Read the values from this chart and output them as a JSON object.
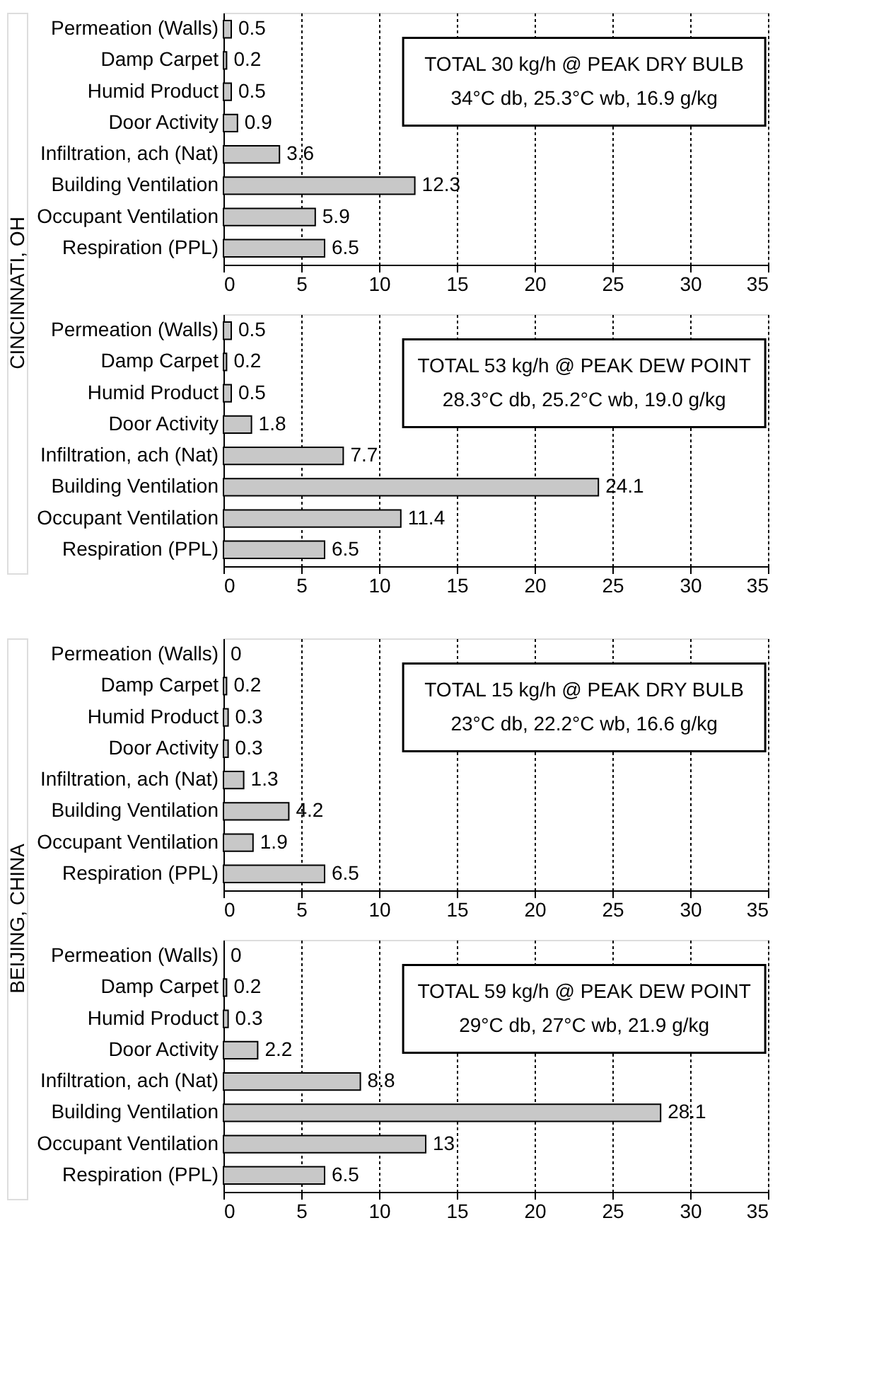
{
  "chart_data": [
    {
      "type": "bar",
      "orientation": "horizontal",
      "ylabel": "CINCINNATI, OH",
      "categories": [
        "Permeation (Walls)",
        "Damp Carpet",
        "Humid Product",
        "Door Activity",
        "Infiltration, ach (Nat)",
        "Building Ventilation",
        "Occupant Ventilation",
        "Respiration (PPL)"
      ],
      "values": [
        0.5,
        0.2,
        0.5,
        0.9,
        3.6,
        12.3,
        5.9,
        6.5
      ],
      "color": "#c8c8c8",
      "xlim": [
        0,
        35
      ],
      "xticks": [
        0,
        5,
        10,
        15,
        20,
        25,
        30,
        35
      ],
      "grid": "x",
      "data_labels": true,
      "annotations": [
        "TOTAL 30 kg/h @ PEAK DRY BULB",
        "34°C db,  25.3°C wb,  16.9 g/kg"
      ]
    },
    {
      "type": "bar",
      "orientation": "horizontal",
      "categories": [
        "Permeation (Walls)",
        "Damp Carpet",
        "Humid Product",
        "Door Activity",
        "Infiltration, ach (Nat)",
        "Building Ventilation",
        "Occupant Ventilation",
        "Respiration (PPL)"
      ],
      "values": [
        0.5,
        0.2,
        0.5,
        1.8,
        7.7,
        24.1,
        11.4,
        6.5
      ],
      "color": "#c8c8c8",
      "xlim": [
        0,
        35
      ],
      "xticks": [
        0,
        5,
        10,
        15,
        20,
        25,
        30,
        35
      ],
      "grid": "x",
      "data_labels": true,
      "annotations": [
        "TOTAL 53 kg/h @ PEAK DEW POINT",
        "28.3°C db,  25.2°C wb,  19.0 g/kg"
      ]
    },
    {
      "type": "bar",
      "orientation": "horizontal",
      "ylabel": "BEIJING, CHINA",
      "categories": [
        "Permeation (Walls)",
        "Damp Carpet",
        "Humid Product",
        "Door Activity",
        "Infiltration, ach (Nat)",
        "Building Ventilation",
        "Occupant Ventilation",
        "Respiration (PPL)"
      ],
      "values": [
        0,
        0.2,
        0.3,
        0.3,
        1.3,
        4.2,
        1.9,
        6.5
      ],
      "color": "#c8c8c8",
      "xlim": [
        0,
        35
      ],
      "xticks": [
        0,
        5,
        10,
        15,
        20,
        25,
        30,
        35
      ],
      "grid": "x",
      "data_labels": true,
      "annotations": [
        "TOTAL 15 kg/h @ PEAK DRY BULB",
        "23°C db,  22.2°C wb,  16.6 g/kg"
      ]
    },
    {
      "type": "bar",
      "orientation": "horizontal",
      "categories": [
        "Permeation (Walls)",
        "Damp Carpet",
        "Humid Product",
        "Door Activity",
        "Infiltration, ach (Nat)",
        "Building Ventilation",
        "Occupant Ventilation",
        "Respiration (PPL)"
      ],
      "values": [
        0,
        0.2,
        0.3,
        2.2,
        8.8,
        28.1,
        13,
        6.5
      ],
      "color": "#c8c8c8",
      "xlim": [
        0,
        35
      ],
      "xticks": [
        0,
        5,
        10,
        15,
        20,
        25,
        30,
        35
      ],
      "grid": "x",
      "data_labels": true,
      "annotations": [
        "TOTAL 59 kg/h @ PEAK DEW POINT",
        "29°C db,  27°C wb,  21.9 g/kg"
      ]
    }
  ]
}
